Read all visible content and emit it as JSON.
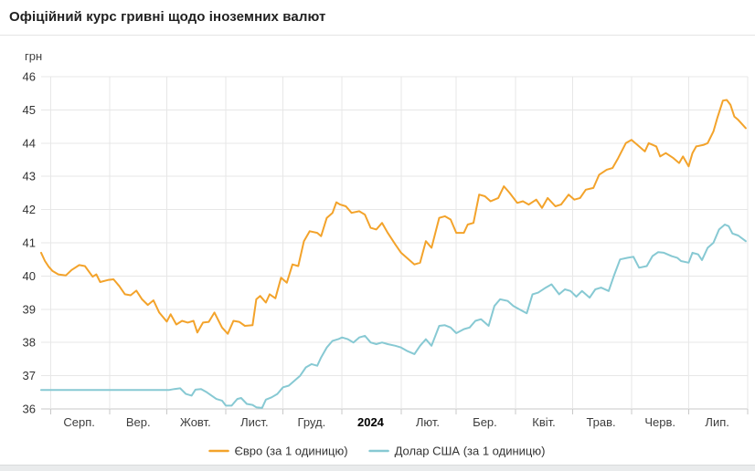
{
  "page": {
    "title": "Офіційний курс гривні щодо іноземних валют"
  },
  "chart_data": {
    "type": "line",
    "title": "Офіційний курс гривні щодо іноземних валют",
    "xlabel": "",
    "ylabel": "грн",
    "ylim": [
      36,
      46
    ],
    "y_ticks": [
      36,
      37,
      38,
      39,
      40,
      41,
      42,
      43,
      44,
      45,
      46
    ],
    "grid": true,
    "legend_position": "bottom",
    "x_range": [
      "2023-07-27",
      "2024-08-01"
    ],
    "month_gridlines": [
      "2023-08-01",
      "2023-09-01",
      "2023-10-01",
      "2023-11-01",
      "2023-12-01",
      "2024-01-01",
      "2024-02-01",
      "2024-03-01",
      "2024-04-01",
      "2024-05-01",
      "2024-06-01",
      "2024-07-01",
      "2024-08-01"
    ],
    "x_ticks": [
      {
        "label": "Серп.",
        "date": "2023-08-16",
        "bold": false
      },
      {
        "label": "Вер.",
        "date": "2023-09-16",
        "bold": false
      },
      {
        "label": "Жовт.",
        "date": "2023-10-16",
        "bold": false
      },
      {
        "label": "Лист.",
        "date": "2023-11-16",
        "bold": false
      },
      {
        "label": "Груд.",
        "date": "2023-12-16",
        "bold": false
      },
      {
        "label": "2024",
        "date": "2024-01-16",
        "bold": true
      },
      {
        "label": "Лют.",
        "date": "2024-02-15",
        "bold": false
      },
      {
        "label": "Бер.",
        "date": "2024-03-16",
        "bold": false
      },
      {
        "label": "Квіт.",
        "date": "2024-04-16",
        "bold": false
      },
      {
        "label": "Трав.",
        "date": "2024-05-16",
        "bold": false
      },
      {
        "label": "Черв.",
        "date": "2024-06-16",
        "bold": false
      },
      {
        "label": "Лип.",
        "date": "2024-07-16",
        "bold": false
      }
    ],
    "series": [
      {
        "key": "euro",
        "name": "Євро (за 1 одиницю)",
        "color": "#f3a32b",
        "points": [
          [
            "2023-07-27",
            40.7
          ],
          [
            "2023-07-29",
            40.45
          ],
          [
            "2023-07-31",
            40.28
          ],
          [
            "2023-08-02",
            40.15
          ],
          [
            "2023-08-05",
            40.05
          ],
          [
            "2023-08-09",
            40.02
          ],
          [
            "2023-08-12",
            40.18
          ],
          [
            "2023-08-16",
            40.33
          ],
          [
            "2023-08-19",
            40.3
          ],
          [
            "2023-08-23",
            39.98
          ],
          [
            "2023-08-25",
            40.05
          ],
          [
            "2023-08-27",
            39.82
          ],
          [
            "2023-08-31",
            39.88
          ],
          [
            "2023-09-03",
            39.9
          ],
          [
            "2023-09-06",
            39.7
          ],
          [
            "2023-09-09",
            39.45
          ],
          [
            "2023-09-12",
            39.42
          ],
          [
            "2023-09-15",
            39.56
          ],
          [
            "2023-09-18",
            39.3
          ],
          [
            "2023-09-21",
            39.13
          ],
          [
            "2023-09-24",
            39.27
          ],
          [
            "2023-09-27",
            38.9
          ],
          [
            "2023-10-01",
            38.63
          ],
          [
            "2023-10-03",
            38.85
          ],
          [
            "2023-10-06",
            38.54
          ],
          [
            "2023-10-09",
            38.65
          ],
          [
            "2023-10-12",
            38.6
          ],
          [
            "2023-10-15",
            38.65
          ],
          [
            "2023-10-17",
            38.3
          ],
          [
            "2023-10-20",
            38.6
          ],
          [
            "2023-10-23",
            38.62
          ],
          [
            "2023-10-26",
            38.9
          ],
          [
            "2023-10-30",
            38.45
          ],
          [
            "2023-11-02",
            38.26
          ],
          [
            "2023-11-05",
            38.65
          ],
          [
            "2023-11-08",
            38.62
          ],
          [
            "2023-11-11",
            38.5
          ],
          [
            "2023-11-15",
            38.52
          ],
          [
            "2023-11-17",
            39.3
          ],
          [
            "2023-11-19",
            39.4
          ],
          [
            "2023-11-22",
            39.2
          ],
          [
            "2023-11-24",
            39.45
          ],
          [
            "2023-11-27",
            39.33
          ],
          [
            "2023-11-30",
            39.95
          ],
          [
            "2023-12-03",
            39.8
          ],
          [
            "2023-12-06",
            40.35
          ],
          [
            "2023-12-09",
            40.3
          ],
          [
            "2023-12-12",
            41.05
          ],
          [
            "2023-12-15",
            41.35
          ],
          [
            "2023-12-19",
            41.3
          ],
          [
            "2023-12-21",
            41.2
          ],
          [
            "2023-12-24",
            41.75
          ],
          [
            "2023-12-27",
            41.9
          ],
          [
            "2023-12-29",
            42.22
          ],
          [
            "2023-12-31",
            42.15
          ],
          [
            "2024-01-03",
            42.1
          ],
          [
            "2024-01-06",
            41.9
          ],
          [
            "2024-01-10",
            41.95
          ],
          [
            "2024-01-13",
            41.85
          ],
          [
            "2024-01-16",
            41.45
          ],
          [
            "2024-01-19",
            41.4
          ],
          [
            "2024-01-22",
            41.6
          ],
          [
            "2024-01-25",
            41.3
          ],
          [
            "2024-01-29",
            40.95
          ],
          [
            "2024-02-01",
            40.7
          ],
          [
            "2024-02-04",
            40.55
          ],
          [
            "2024-02-08",
            40.35
          ],
          [
            "2024-02-11",
            40.4
          ],
          [
            "2024-02-14",
            41.05
          ],
          [
            "2024-02-17",
            40.85
          ],
          [
            "2024-02-21",
            41.75
          ],
          [
            "2024-02-24",
            41.8
          ],
          [
            "2024-02-27",
            41.7
          ],
          [
            "2024-03-01",
            41.3
          ],
          [
            "2024-03-05",
            41.3
          ],
          [
            "2024-03-07",
            41.55
          ],
          [
            "2024-03-10",
            41.6
          ],
          [
            "2024-03-13",
            42.45
          ],
          [
            "2024-03-16",
            42.4
          ],
          [
            "2024-03-19",
            42.25
          ],
          [
            "2024-03-23",
            42.35
          ],
          [
            "2024-03-26",
            42.7
          ],
          [
            "2024-03-29",
            42.5
          ],
          [
            "2024-04-02",
            42.2
          ],
          [
            "2024-04-05",
            42.25
          ],
          [
            "2024-04-08",
            42.15
          ],
          [
            "2024-04-12",
            42.3
          ],
          [
            "2024-04-15",
            42.05
          ],
          [
            "2024-04-18",
            42.35
          ],
          [
            "2024-04-22",
            42.1
          ],
          [
            "2024-04-25",
            42.15
          ],
          [
            "2024-04-29",
            42.45
          ],
          [
            "2024-05-02",
            42.3
          ],
          [
            "2024-05-05",
            42.35
          ],
          [
            "2024-05-08",
            42.6
          ],
          [
            "2024-05-12",
            42.65
          ],
          [
            "2024-05-15",
            43.05
          ],
          [
            "2024-05-19",
            43.2
          ],
          [
            "2024-05-22",
            43.25
          ],
          [
            "2024-05-25",
            43.55
          ],
          [
            "2024-05-29",
            44.0
          ],
          [
            "2024-06-01",
            44.1
          ],
          [
            "2024-06-04",
            43.95
          ],
          [
            "2024-06-08",
            43.75
          ],
          [
            "2024-06-10",
            44.0
          ],
          [
            "2024-06-14",
            43.9
          ],
          [
            "2024-06-16",
            43.6
          ],
          [
            "2024-06-19",
            43.7
          ],
          [
            "2024-06-23",
            43.55
          ],
          [
            "2024-06-26",
            43.4
          ],
          [
            "2024-06-28",
            43.6
          ],
          [
            "2024-07-01",
            43.3
          ],
          [
            "2024-07-03",
            43.7
          ],
          [
            "2024-07-05",
            43.9
          ],
          [
            "2024-07-09",
            43.95
          ],
          [
            "2024-07-11",
            44.0
          ],
          [
            "2024-07-14",
            44.35
          ],
          [
            "2024-07-16",
            44.75
          ],
          [
            "2024-07-19",
            45.28
          ],
          [
            "2024-07-21",
            45.3
          ],
          [
            "2024-07-23",
            45.15
          ],
          [
            "2024-07-25",
            44.8
          ],
          [
            "2024-07-27",
            44.7
          ],
          [
            "2024-07-31",
            44.45
          ]
        ]
      },
      {
        "key": "usd",
        "name": "Долар США (за 1 одиницю)",
        "color": "#87c9d3",
        "points": [
          [
            "2023-07-27",
            36.57
          ],
          [
            "2023-08-15",
            36.57
          ],
          [
            "2023-09-01",
            36.57
          ],
          [
            "2023-09-20",
            36.57
          ],
          [
            "2023-10-02",
            36.57
          ],
          [
            "2023-10-05",
            36.6
          ],
          [
            "2023-10-08",
            36.62
          ],
          [
            "2023-10-11",
            36.45
          ],
          [
            "2023-10-14",
            36.4
          ],
          [
            "2023-10-16",
            36.58
          ],
          [
            "2023-10-19",
            36.6
          ],
          [
            "2023-10-22",
            36.5
          ],
          [
            "2023-10-24",
            36.42
          ],
          [
            "2023-10-27",
            36.3
          ],
          [
            "2023-10-30",
            36.25
          ],
          [
            "2023-11-01",
            36.1
          ],
          [
            "2023-11-04",
            36.1
          ],
          [
            "2023-11-07",
            36.3
          ],
          [
            "2023-11-09",
            36.33
          ],
          [
            "2023-11-12",
            36.15
          ],
          [
            "2023-11-15",
            36.12
          ],
          [
            "2023-11-17",
            36.05
          ],
          [
            "2023-11-20",
            36.03
          ],
          [
            "2023-11-22",
            36.28
          ],
          [
            "2023-11-25",
            36.35
          ],
          [
            "2023-11-28",
            36.45
          ],
          [
            "2023-12-01",
            36.65
          ],
          [
            "2023-12-04",
            36.7
          ],
          [
            "2023-12-07",
            36.85
          ],
          [
            "2023-12-10",
            37.0
          ],
          [
            "2023-12-13",
            37.25
          ],
          [
            "2023-12-16",
            37.35
          ],
          [
            "2023-12-19",
            37.3
          ],
          [
            "2023-12-21",
            37.55
          ],
          [
            "2023-12-24",
            37.85
          ],
          [
            "2023-12-27",
            38.05
          ],
          [
            "2023-12-30",
            38.1
          ],
          [
            "2024-01-01",
            38.15
          ],
          [
            "2024-01-04",
            38.1
          ],
          [
            "2024-01-07",
            38.0
          ],
          [
            "2024-01-10",
            38.15
          ],
          [
            "2024-01-13",
            38.2
          ],
          [
            "2024-01-16",
            38.0
          ],
          [
            "2024-01-19",
            37.95
          ],
          [
            "2024-01-22",
            38.0
          ],
          [
            "2024-01-25",
            37.95
          ],
          [
            "2024-01-29",
            37.9
          ],
          [
            "2024-02-01",
            37.85
          ],
          [
            "2024-02-04",
            37.75
          ],
          [
            "2024-02-08",
            37.65
          ],
          [
            "2024-02-11",
            37.9
          ],
          [
            "2024-02-14",
            38.1
          ],
          [
            "2024-02-17",
            37.9
          ],
          [
            "2024-02-21",
            38.5
          ],
          [
            "2024-02-24",
            38.52
          ],
          [
            "2024-02-27",
            38.45
          ],
          [
            "2024-03-01",
            38.28
          ],
          [
            "2024-03-05",
            38.4
          ],
          [
            "2024-03-08",
            38.45
          ],
          [
            "2024-03-11",
            38.65
          ],
          [
            "2024-03-14",
            38.7
          ],
          [
            "2024-03-18",
            38.5
          ],
          [
            "2024-03-21",
            39.1
          ],
          [
            "2024-03-24",
            39.3
          ],
          [
            "2024-03-28",
            39.25
          ],
          [
            "2024-03-31",
            39.1
          ],
          [
            "2024-04-03",
            39.0
          ],
          [
            "2024-04-07",
            38.88
          ],
          [
            "2024-04-10",
            39.45
          ],
          [
            "2024-04-13",
            39.5
          ],
          [
            "2024-04-17",
            39.65
          ],
          [
            "2024-04-20",
            39.75
          ],
          [
            "2024-04-24",
            39.45
          ],
          [
            "2024-04-27",
            39.6
          ],
          [
            "2024-04-30",
            39.55
          ],
          [
            "2024-05-03",
            39.38
          ],
          [
            "2024-05-06",
            39.55
          ],
          [
            "2024-05-10",
            39.35
          ],
          [
            "2024-05-13",
            39.6
          ],
          [
            "2024-05-16",
            39.65
          ],
          [
            "2024-05-20",
            39.55
          ],
          [
            "2024-05-23",
            40.05
          ],
          [
            "2024-05-26",
            40.5
          ],
          [
            "2024-05-30",
            40.55
          ],
          [
            "2024-06-02",
            40.58
          ],
          [
            "2024-06-05",
            40.25
          ],
          [
            "2024-06-09",
            40.3
          ],
          [
            "2024-06-12",
            40.6
          ],
          [
            "2024-06-15",
            40.72
          ],
          [
            "2024-06-18",
            40.7
          ],
          [
            "2024-06-22",
            40.6
          ],
          [
            "2024-06-25",
            40.55
          ],
          [
            "2024-06-27",
            40.45
          ],
          [
            "2024-07-01",
            40.4
          ],
          [
            "2024-07-03",
            40.7
          ],
          [
            "2024-07-06",
            40.65
          ],
          [
            "2024-07-08",
            40.48
          ],
          [
            "2024-07-11",
            40.85
          ],
          [
            "2024-07-14",
            41.0
          ],
          [
            "2024-07-17",
            41.4
          ],
          [
            "2024-07-20",
            41.55
          ],
          [
            "2024-07-22",
            41.5
          ],
          [
            "2024-07-24",
            41.28
          ],
          [
            "2024-07-27",
            41.22
          ],
          [
            "2024-07-31",
            41.05
          ]
        ]
      }
    ]
  }
}
